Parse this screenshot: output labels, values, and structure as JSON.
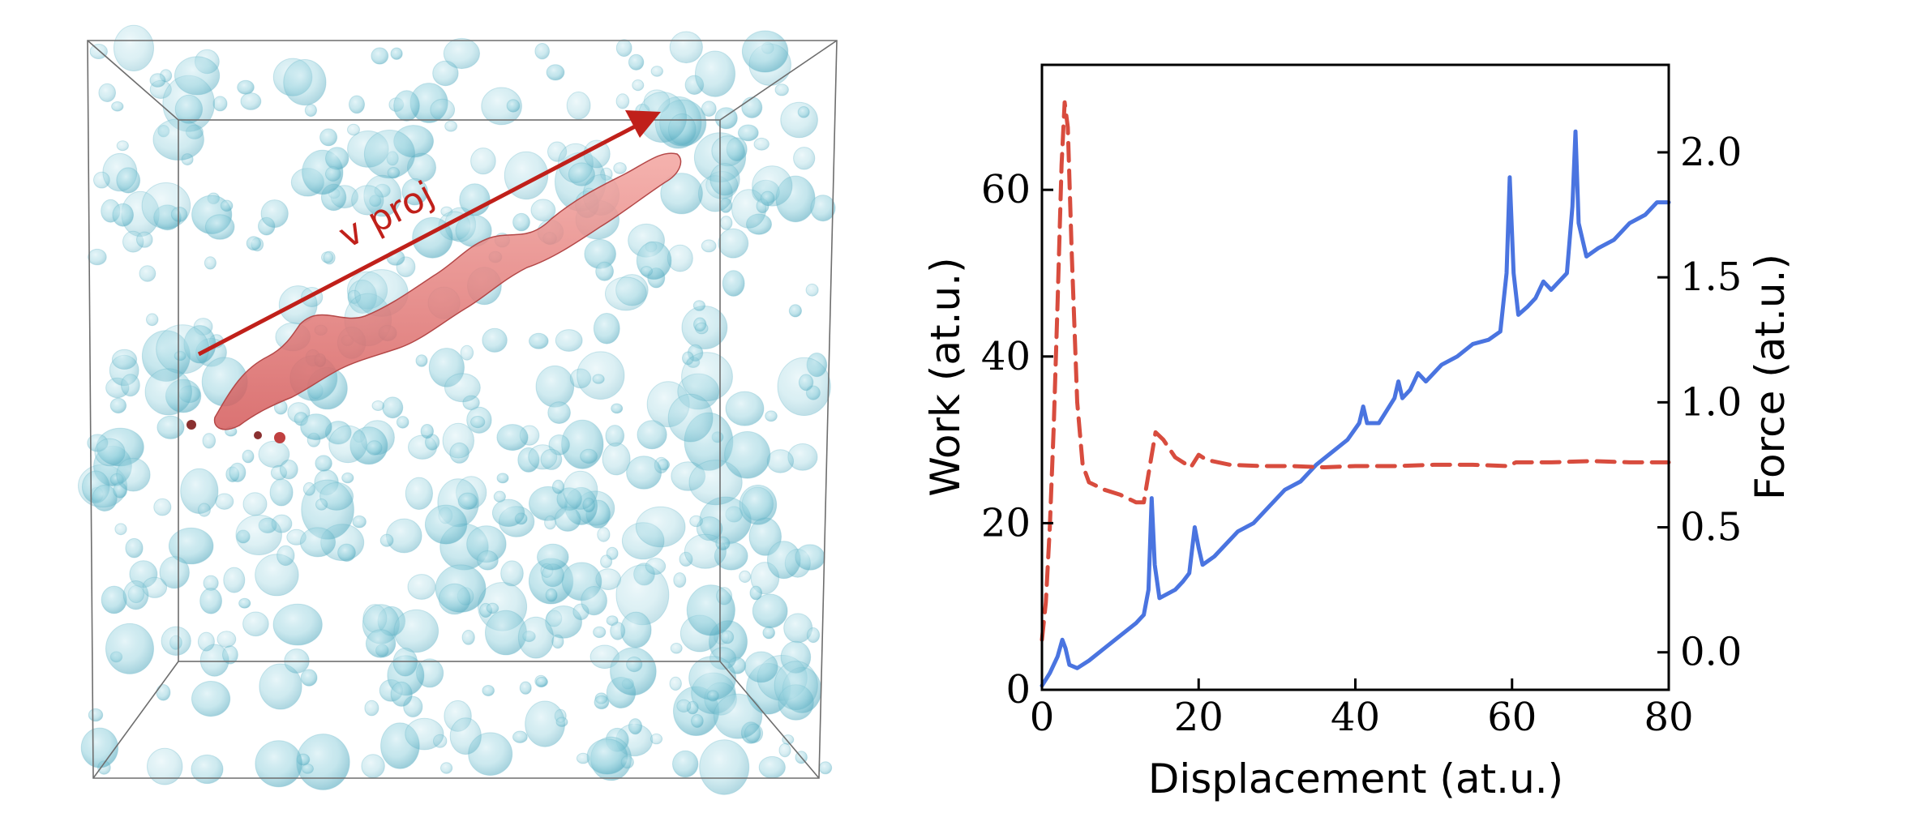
{
  "left_panel": {
    "arrow_label": "v proj",
    "colors": {
      "blob": "#8fcfdc",
      "blob_dark": "#3f9fb5",
      "channel": "#e07070",
      "arrow": "#c0201a"
    }
  },
  "chart_data": {
    "type": "line",
    "xlabel": "Displacement (at.u.)",
    "ylabel_left": "Work (at.u.)",
    "ylabel_right": "Force (at.u.)",
    "xlim": [
      0,
      80
    ],
    "ylim_left": [
      0,
      75
    ],
    "ylim_right": [
      -0.15,
      2.35
    ],
    "xticks": [
      "0",
      "20",
      "40",
      "60",
      "80"
    ],
    "yticks_left": [
      "0",
      "20",
      "40",
      "60"
    ],
    "yticks_right": [
      "0.0",
      "0.5",
      "1.0",
      "1.5",
      "2.0"
    ],
    "grid": false,
    "series": [
      {
        "axis": "left",
        "color": "#4a74e0",
        "style": "solid",
        "points": [
          [
            0,
            0.5
          ],
          [
            1,
            2
          ],
          [
            2,
            4
          ],
          [
            2.6,
            6
          ],
          [
            3,
            5
          ],
          [
            3.5,
            3
          ],
          [
            4.5,
            2.6
          ],
          [
            6,
            3.5
          ],
          [
            8,
            5
          ],
          [
            10,
            6.5
          ],
          [
            12,
            8
          ],
          [
            13,
            9
          ],
          [
            13.6,
            12
          ],
          [
            14,
            23
          ],
          [
            14.4,
            15
          ],
          [
            15,
            11
          ],
          [
            17,
            12
          ],
          [
            18,
            13
          ],
          [
            18.8,
            14
          ],
          [
            19.5,
            19.5
          ],
          [
            20,
            17
          ],
          [
            20.5,
            15
          ],
          [
            22,
            16
          ],
          [
            24,
            18
          ],
          [
            25,
            19
          ],
          [
            27,
            20
          ],
          [
            29,
            22
          ],
          [
            31,
            24
          ],
          [
            33,
            25
          ],
          [
            35,
            27
          ],
          [
            37,
            28.5
          ],
          [
            39,
            30
          ],
          [
            40.5,
            32
          ],
          [
            41,
            34
          ],
          [
            41.5,
            32
          ],
          [
            43,
            32
          ],
          [
            45,
            35
          ],
          [
            45.5,
            37
          ],
          [
            46,
            35
          ],
          [
            47,
            36
          ],
          [
            48,
            38
          ],
          [
            49,
            37
          ],
          [
            51,
            39
          ],
          [
            53,
            40
          ],
          [
            55,
            41.5
          ],
          [
            57,
            42
          ],
          [
            58.5,
            43
          ],
          [
            59.3,
            50
          ],
          [
            59.7,
            61.5
          ],
          [
            60.2,
            50
          ],
          [
            60.8,
            45
          ],
          [
            62,
            46
          ],
          [
            63,
            47
          ],
          [
            64,
            49
          ],
          [
            65,
            48
          ],
          [
            67,
            50
          ],
          [
            67.7,
            58
          ],
          [
            68.1,
            67
          ],
          [
            68.5,
            56
          ],
          [
            69.5,
            52
          ],
          [
            71,
            53
          ],
          [
            73,
            54
          ],
          [
            75,
            56
          ],
          [
            77,
            57
          ],
          [
            78.5,
            58.5
          ],
          [
            80,
            58.5
          ]
        ]
      },
      {
        "axis": "right",
        "color": "#d84c3e",
        "style": "dashed",
        "points": [
          [
            0,
            0.05
          ],
          [
            0.5,
            0.2
          ],
          [
            1,
            0.5
          ],
          [
            1.5,
            0.9
          ],
          [
            2,
            1.4
          ],
          [
            2.5,
            1.95
          ],
          [
            2.9,
            2.2
          ],
          [
            3.3,
            2.1
          ],
          [
            3.8,
            1.6
          ],
          [
            4.5,
            1.0
          ],
          [
            5.2,
            0.75
          ],
          [
            6,
            0.68
          ],
          [
            8,
            0.65
          ],
          [
            10,
            0.63
          ],
          [
            12,
            0.6
          ],
          [
            13,
            0.6
          ],
          [
            13.8,
            0.75
          ],
          [
            14.5,
            0.88
          ],
          [
            15.5,
            0.85
          ],
          [
            17,
            0.78
          ],
          [
            19,
            0.74
          ],
          [
            20,
            0.79
          ],
          [
            21,
            0.77
          ],
          [
            24,
            0.75
          ],
          [
            28,
            0.745
          ],
          [
            32,
            0.745
          ],
          [
            36,
            0.74
          ],
          [
            40,
            0.745
          ],
          [
            45,
            0.745
          ],
          [
            50,
            0.75
          ],
          [
            55,
            0.75
          ],
          [
            59.5,
            0.745
          ],
          [
            60.5,
            0.76
          ],
          [
            65,
            0.76
          ],
          [
            70,
            0.765
          ],
          [
            75,
            0.76
          ],
          [
            80,
            0.76
          ]
        ]
      }
    ]
  }
}
